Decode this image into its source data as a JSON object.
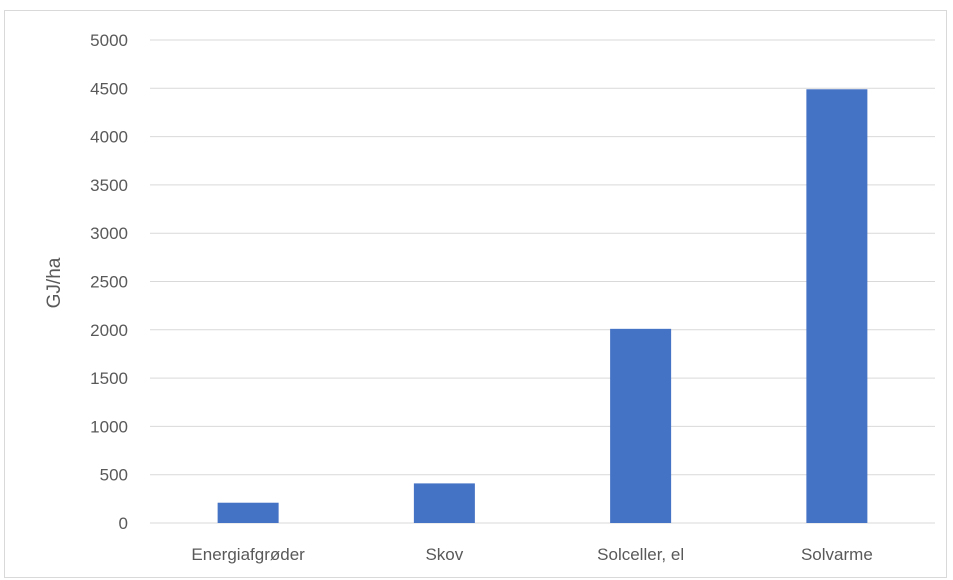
{
  "chart_data": {
    "type": "bar",
    "categories": [
      "Energiafgrøder",
      "Skov",
      "Solceller, el",
      "Solvarme"
    ],
    "values": [
      210,
      410,
      2010,
      4490
    ],
    "title": "",
    "xlabel": "",
    "ylabel": "GJ/ha",
    "ylim": [
      0,
      5000
    ],
    "yticks": [
      0,
      500,
      1000,
      1500,
      2000,
      2500,
      3000,
      3500,
      4000,
      4500,
      5000
    ],
    "grid": true,
    "legend": "none",
    "colors": {
      "bar": "#4472C4",
      "grid": "#d9d9d9",
      "text": "#595959"
    }
  }
}
